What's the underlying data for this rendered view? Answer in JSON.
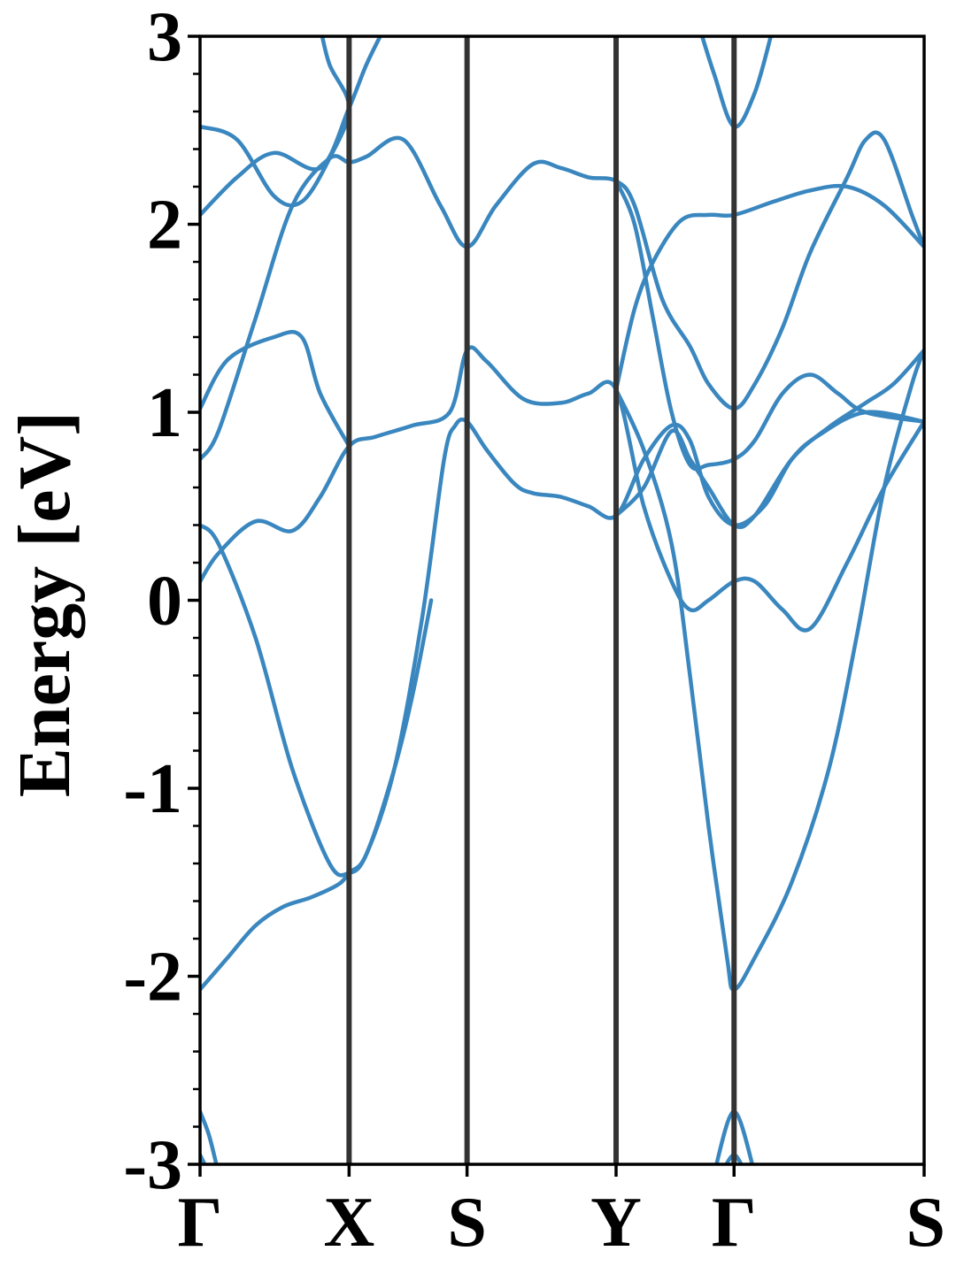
{
  "chart_data": {
    "type": "line",
    "title": "",
    "ylabel": "Energy [eV]",
    "xlabel": "",
    "ylim": [
      -3,
      3
    ],
    "yticks": [
      -3,
      -2,
      -1,
      0,
      1,
      2,
      3
    ],
    "yticks_minor_step": 0.2,
    "kpoints": [
      {
        "label": "Γ",
        "x": 0.0
      },
      {
        "label": "X",
        "x": 0.806
      },
      {
        "label": "S",
        "x": 1.444
      },
      {
        "label": "Y",
        "x": 2.25
      },
      {
        "label": "Γ",
        "x": 2.888
      },
      {
        "label": "S",
        "x": 3.916
      }
    ],
    "colors": {
      "band": "#3a87bf",
      "kline": "#333333",
      "frame": "#000000"
    },
    "grid": false,
    "series": [
      {
        "values": [
          [
            0.0,
            -2.07
          ],
          [
            0.15,
            -1.9
          ],
          [
            0.3,
            -1.73
          ],
          [
            0.45,
            -1.63
          ],
          [
            0.6,
            -1.58
          ],
          [
            0.75,
            -1.51
          ],
          [
            0.806,
            -1.45
          ],
          [
            0.9,
            -1.35
          ],
          [
            1.05,
            -0.9
          ],
          [
            1.2,
            -0.1
          ],
          [
            1.32,
            0.75
          ],
          [
            1.38,
            0.93
          ],
          [
            1.444,
            0.95
          ],
          [
            1.55,
            0.8
          ],
          [
            1.7,
            0.62
          ],
          [
            1.8,
            0.57
          ],
          [
            1.95,
            0.55
          ],
          [
            2.1,
            0.5
          ],
          [
            2.25,
            0.45
          ],
          [
            2.4,
            0.75
          ],
          [
            2.55,
            0.93
          ],
          [
            2.65,
            0.85
          ],
          [
            2.75,
            0.55
          ],
          [
            2.888,
            0.4
          ],
          [
            3.05,
            0.5
          ],
          [
            3.2,
            0.75
          ],
          [
            3.35,
            0.88
          ],
          [
            3.6,
            1.0
          ],
          [
            3.916,
            0.95
          ]
        ]
      },
      {
        "values": [
          [
            0.0,
            0.4
          ],
          [
            0.1,
            0.3
          ],
          [
            0.3,
            -0.2
          ],
          [
            0.5,
            -0.9
          ],
          [
            0.7,
            -1.4
          ],
          [
            0.806,
            -1.45
          ],
          [
            0.9,
            -1.35
          ],
          [
            1.05,
            -0.9
          ],
          [
            1.15,
            -0.5
          ],
          [
            1.25,
            0.0
          ]
        ]
      },
      {
        "values": [
          [
            0.0,
            0.1
          ],
          [
            0.1,
            0.25
          ],
          [
            0.3,
            0.42
          ],
          [
            0.5,
            0.37
          ],
          [
            0.65,
            0.55
          ],
          [
            0.806,
            0.82
          ],
          [
            0.95,
            0.87
          ],
          [
            1.15,
            0.93
          ],
          [
            1.35,
            1.0
          ],
          [
            1.444,
            1.33
          ],
          [
            1.55,
            1.27
          ],
          [
            1.75,
            1.07
          ],
          [
            1.95,
            1.05
          ],
          [
            2.1,
            1.1
          ],
          [
            2.25,
            1.12
          ],
          [
            2.4,
            0.5
          ],
          [
            2.55,
            0.1
          ],
          [
            2.65,
            -0.05
          ],
          [
            2.75,
            0.0
          ],
          [
            2.888,
            0.1
          ],
          [
            3.0,
            0.1
          ],
          [
            3.15,
            -0.05
          ],
          [
            3.3,
            -0.15
          ],
          [
            3.5,
            0.2
          ],
          [
            3.7,
            0.6
          ],
          [
            3.916,
            0.95
          ]
        ]
      },
      {
        "values": [
          [
            0.0,
            0.75
          ],
          [
            0.1,
            0.9
          ],
          [
            0.3,
            1.5
          ],
          [
            0.5,
            2.1
          ],
          [
            0.7,
            2.35
          ],
          [
            0.806,
            2.33
          ],
          [
            0.9,
            2.36
          ],
          [
            1.1,
            2.45
          ],
          [
            1.3,
            2.1
          ],
          [
            1.444,
            1.88
          ],
          [
            1.6,
            2.1
          ],
          [
            1.8,
            2.32
          ],
          [
            1.95,
            2.3
          ],
          [
            2.1,
            2.25
          ],
          [
            2.25,
            2.23
          ],
          [
            2.35,
            2.1
          ],
          [
            2.5,
            1.6
          ],
          [
            2.65,
            1.35
          ],
          [
            2.75,
            1.15
          ],
          [
            2.888,
            1.02
          ],
          [
            3.0,
            1.15
          ],
          [
            3.15,
            1.45
          ],
          [
            3.3,
            1.85
          ],
          [
            3.5,
            2.25
          ],
          [
            3.6,
            2.45
          ],
          [
            3.7,
            2.45
          ],
          [
            3.85,
            2.05
          ],
          [
            3.916,
            1.88
          ]
        ]
      },
      {
        "values": [
          [
            0.0,
            1.02
          ],
          [
            0.15,
            1.28
          ],
          [
            0.4,
            1.4
          ],
          [
            0.55,
            1.4
          ],
          [
            0.65,
            1.1
          ],
          [
            0.806,
            0.82
          ]
        ]
      },
      {
        "values": [
          [
            0.0,
            2.05
          ],
          [
            0.2,
            2.25
          ],
          [
            0.4,
            2.38
          ],
          [
            0.65,
            2.3
          ],
          [
            0.806,
            2.62
          ],
          [
            0.9,
            2.85
          ],
          [
            1.0,
            3.05
          ]
        ]
      },
      {
        "values": [
          [
            0.0,
            2.52
          ],
          [
            0.2,
            2.45
          ],
          [
            0.4,
            2.15
          ],
          [
            0.55,
            2.12
          ],
          [
            0.7,
            2.35
          ],
          [
            0.806,
            2.62
          ],
          [
            0.7,
            2.85
          ],
          [
            0.65,
            3.05
          ]
        ]
      },
      {
        "values": [
          [
            2.25,
            1.12
          ],
          [
            2.35,
            1.55
          ],
          [
            2.45,
            1.8
          ],
          [
            2.6,
            2.02
          ],
          [
            2.75,
            2.05
          ],
          [
            2.888,
            2.05
          ],
          [
            3.1,
            2.12
          ],
          [
            3.3,
            2.18
          ],
          [
            3.5,
            2.2
          ],
          [
            3.7,
            2.1
          ],
          [
            3.916,
            1.88
          ]
        ]
      },
      {
        "values": [
          [
            2.25,
            1.12
          ],
          [
            2.4,
            0.8
          ],
          [
            2.55,
            0.3
          ],
          [
            2.65,
            -0.4
          ],
          [
            2.75,
            -1.2
          ],
          [
            2.85,
            -1.9
          ],
          [
            2.888,
            -2.07
          ],
          [
            3.0,
            -1.9
          ],
          [
            3.2,
            -1.5
          ],
          [
            3.4,
            -0.9
          ],
          [
            3.55,
            -0.2
          ],
          [
            3.7,
            0.6
          ],
          [
            3.85,
            1.15
          ],
          [
            3.916,
            1.33
          ]
        ]
      },
      {
        "values": [
          [
            2.25,
            2.23
          ],
          [
            2.35,
            2.0
          ],
          [
            2.45,
            1.5
          ],
          [
            2.55,
            1.0
          ],
          [
            2.65,
            0.72
          ],
          [
            2.75,
            0.72
          ],
          [
            2.888,
            0.75
          ],
          [
            3.0,
            0.85
          ],
          [
            3.15,
            1.1
          ],
          [
            3.3,
            1.2
          ],
          [
            3.45,
            1.1
          ],
          [
            3.6,
            1.0
          ],
          [
            3.916,
            0.95
          ]
        ]
      },
      {
        "values": [
          [
            2.25,
            0.45
          ],
          [
            2.4,
            0.6
          ],
          [
            2.55,
            0.9
          ],
          [
            2.65,
            0.75
          ],
          [
            2.75,
            0.6
          ],
          [
            2.888,
            0.4
          ],
          [
            3.0,
            0.45
          ],
          [
            3.2,
            0.75
          ],
          [
            3.4,
            0.92
          ],
          [
            3.6,
            1.05
          ],
          [
            3.75,
            1.15
          ],
          [
            3.916,
            1.33
          ]
        ]
      },
      {
        "values": [
          [
            2.7,
            3.05
          ],
          [
            2.78,
            2.8
          ],
          [
            2.888,
            2.52
          ],
          [
            3.0,
            2.7
          ],
          [
            3.1,
            3.05
          ]
        ]
      },
      {
        "values": [
          [
            0.0,
            -2.72
          ],
          [
            0.05,
            -2.85
          ],
          [
            0.1,
            -3.05
          ]
        ]
      },
      {
        "values": [
          [
            0.0,
            -2.95
          ],
          [
            0.05,
            -3.05
          ]
        ]
      },
      {
        "values": [
          [
            2.78,
            -3.05
          ],
          [
            2.888,
            -2.72
          ],
          [
            3.0,
            -3.05
          ]
        ]
      },
      {
        "values": [
          [
            2.82,
            -3.05
          ],
          [
            2.888,
            -2.95
          ],
          [
            2.95,
            -3.05
          ]
        ]
      }
    ]
  }
}
